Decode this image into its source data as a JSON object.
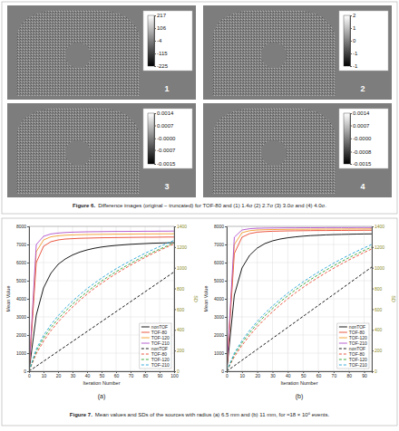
{
  "figure6": {
    "caption_label": "Figure 6.",
    "caption": "Difference images (original − truncated) for TOF-80 and (1) 1.4σ (2) 2.7σ (3) 3.0σ and (4) 4.0σ.",
    "panels": [
      {
        "label": "1",
        "colorbar": {
          "range": [
            -225,
            217
          ],
          "ticks": [
            217,
            106,
            -4,
            -115,
            -225
          ]
        }
      },
      {
        "label": "2",
        "colorbar": {
          "range": [
            -1.45,
            2.15
          ],
          "ticks": [
            {
              "value": 2.15,
              "label": "2"
            },
            {
              "value": 1.25,
              "label": "1"
            },
            {
              "value": 0.35,
              "label": "0"
            },
            {
              "value": -0.55,
              "label": "-1"
            },
            {
              "value": -1.45,
              "label": "-1"
            }
          ]
        }
      },
      {
        "label": "3",
        "colorbar": {
          "range": [
            -0.0015,
            0.0014
          ],
          "ticks": [
            0.0014,
            0.0007,
            {
              "value": -4e-05,
              "label": "-0.0000"
            },
            -0.0007,
            -0.0015
          ]
        }
      },
      {
        "label": "4",
        "colorbar": {
          "range": [
            -0.0015,
            0.0014
          ],
          "ticks": [
            0.0014,
            0.0007,
            {
              "value": -4e-05,
              "label": "-0.0000"
            },
            -0.0008,
            -0.0015
          ]
        }
      }
    ]
  },
  "figure7": {
    "caption_label": "Figure 7.",
    "caption": "Mean values and SDs of the sources with radius (a) 6.5 mm and (b) 11 mm, for ≈18 × 10⁶ events."
  },
  "chart_data": [
    {
      "type": "line",
      "title": "(a)",
      "x_label": "Iteration Number",
      "y_label": "Mean Value",
      "y2_label": "SD",
      "x": [
        0,
        5,
        10,
        15,
        20,
        25,
        30,
        35,
        40,
        45,
        50,
        55,
        60,
        65,
        70,
        75,
        80,
        85,
        90,
        95,
        100
      ],
      "xlim": [
        0,
        100
      ],
      "xticks": [
        0,
        10,
        20,
        30,
        40,
        50,
        60,
        70,
        80,
        90,
        100
      ],
      "ylim": [
        0,
        8000
      ],
      "yticks": [
        0,
        1000,
        2000,
        3000,
        4000,
        5000,
        6000,
        7000,
        8000
      ],
      "y2lim": [
        0,
        1400
      ],
      "y2ticks": [
        0,
        200,
        400,
        600,
        800,
        1000,
        1200,
        1400
      ],
      "grid": true,
      "legend": "lower right",
      "series": [
        {
          "name": "nonTOF",
          "color": "#000000",
          "line_style": "solid",
          "values": [
            0,
            3100,
            4600,
            5400,
            5900,
            6200,
            6420,
            6580,
            6700,
            6790,
            6860,
            6910,
            6950,
            6980,
            7010,
            7030,
            7050,
            7070,
            7080,
            7090,
            7100
          ]
        },
        {
          "name": "TOF-80",
          "color": "#e8452c",
          "line_style": "solid",
          "values": [
            0,
            6000,
            6900,
            7150,
            7250,
            7300,
            7320,
            7340,
            7350,
            7360,
            7370,
            7375,
            7380,
            7385,
            7390,
            7395,
            7400,
            7400,
            7405,
            7410,
            7410
          ]
        },
        {
          "name": "TOF-120",
          "color": "#f39c2b",
          "line_style": "solid",
          "values": [
            0,
            6600,
            7250,
            7420,
            7480,
            7510,
            7530,
            7540,
            7550,
            7555,
            7560,
            7565,
            7570,
            7570,
            7575,
            7580,
            7580,
            7585,
            7585,
            7590,
            7590
          ]
        },
        {
          "name": "TOF-210",
          "color": "#b04fc9",
          "line_style": "solid",
          "values": [
            0,
            7000,
            7450,
            7580,
            7630,
            7660,
            7680,
            7690,
            7700,
            7705,
            7710,
            7715,
            7720,
            7720,
            7725,
            7725,
            7730,
            7730,
            7735,
            7735,
            7740
          ]
        },
        {
          "name": "nonTOF",
          "color": "#000000",
          "line_style": "dashed",
          "axis": "y2",
          "values": [
            0,
            48,
            96,
            144,
            192,
            240,
            288,
            336,
            384,
            432,
            480,
            528,
            576,
            624,
            672,
            720,
            768,
            816,
            864,
            912,
            960
          ]
        },
        {
          "name": "TOF-80",
          "color": "#e8452c",
          "line_style": "dashed",
          "axis": "y2",
          "values": [
            0,
            170,
            290,
            390,
            475,
            550,
            620,
            685,
            745,
            800,
            850,
            898,
            943,
            985,
            1025,
            1063,
            1100,
            1135,
            1168,
            1200,
            1230
          ]
        },
        {
          "name": "TOF-120",
          "color": "#2ca02c",
          "line_style": "dashed",
          "axis": "y2",
          "values": [
            0,
            195,
            320,
            420,
            505,
            580,
            648,
            710,
            768,
            822,
            872,
            918,
            962,
            1003,
            1042,
            1080,
            1115,
            1148,
            1180,
            1210,
            1240
          ]
        },
        {
          "name": "TOF-210",
          "color": "#1fa3d6",
          "line_style": "dashed",
          "axis": "y2",
          "values": [
            0,
            215,
            345,
            448,
            535,
            610,
            678,
            740,
            798,
            850,
            900,
            946,
            990,
            1030,
            1068,
            1105,
            1140,
            1173,
            1205,
            1235,
            1265
          ]
        }
      ]
    },
    {
      "type": "line",
      "title": "(b)",
      "x_label": "Iteration Number",
      "y_label": "Mean Value",
      "y2_label": "SD",
      "x": [
        0,
        5,
        10,
        15,
        20,
        25,
        30,
        35,
        40,
        45,
        50,
        55,
        60,
        65,
        70,
        75,
        80,
        85,
        90,
        95
      ],
      "xlim": [
        0,
        95
      ],
      "xticks": [
        0,
        10,
        20,
        30,
        40,
        50,
        60,
        70,
        80,
        90
      ],
      "ylim": [
        0,
        8000
      ],
      "yticks": [
        0,
        1000,
        2000,
        3000,
        4000,
        5000,
        6000,
        7000,
        8000
      ],
      "y2lim": [
        0,
        1400
      ],
      "y2ticks": [
        0,
        200,
        400,
        600,
        800,
        1000,
        1200,
        1400
      ],
      "grid": true,
      "legend": "lower right",
      "series": [
        {
          "name": "nonTOF",
          "color": "#000000",
          "line_style": "solid",
          "values": [
            0,
            4200,
            5700,
            6400,
            6800,
            7050,
            7200,
            7300,
            7370,
            7420,
            7460,
            7490,
            7510,
            7530,
            7545,
            7555,
            7565,
            7575,
            7580,
            7585
          ]
        },
        {
          "name": "TOF-80",
          "color": "#e8452c",
          "line_style": "solid",
          "values": [
            0,
            6500,
            7400,
            7600,
            7680,
            7710,
            7730,
            7740,
            7750,
            7755,
            7760,
            7765,
            7770,
            7770,
            7775,
            7775,
            7780,
            7780,
            7785,
            7785
          ]
        },
        {
          "name": "TOF-120",
          "color": "#f39c2b",
          "line_style": "solid",
          "values": [
            0,
            7000,
            7650,
            7760,
            7800,
            7815,
            7825,
            7830,
            7835,
            7840,
            7840,
            7845,
            7845,
            7850,
            7850,
            7850,
            7855,
            7855,
            7855,
            7860
          ]
        },
        {
          "name": "TOF-210",
          "color": "#b04fc9",
          "line_style": "solid",
          "values": [
            0,
            7400,
            7800,
            7870,
            7895,
            7905,
            7910,
            7915,
            7920,
            7920,
            7925,
            7925,
            7925,
            7930,
            7930,
            7930,
            7930,
            7935,
            7935,
            7935
          ]
        },
        {
          "name": "nonTOF",
          "color": "#000000",
          "line_style": "dashed",
          "axis": "y2",
          "values": [
            0,
            53,
            106,
            159,
            212,
            265,
            318,
            371,
            424,
            477,
            530,
            583,
            636,
            689,
            742,
            795,
            848,
            901,
            954,
            1007
          ]
        },
        {
          "name": "TOF-80",
          "color": "#e8452c",
          "line_style": "dashed",
          "axis": "y2",
          "values": [
            0,
            140,
            250,
            345,
            430,
            505,
            575,
            640,
            700,
            757,
            810,
            860,
            907,
            952,
            995,
            1036,
            1075,
            1112,
            1148,
            1182
          ]
        },
        {
          "name": "TOF-120",
          "color": "#2ca02c",
          "line_style": "dashed",
          "axis": "y2",
          "values": [
            0,
            160,
            275,
            372,
            458,
            535,
            605,
            670,
            730,
            786,
            838,
            887,
            933,
            977,
            1019,
            1059,
            1097,
            1133,
            1168,
            1200
          ]
        },
        {
          "name": "TOF-210",
          "color": "#1fa3d6",
          "line_style": "dashed",
          "axis": "y2",
          "values": [
            0,
            175,
            295,
            395,
            482,
            560,
            630,
            695,
            755,
            811,
            863,
            912,
            958,
            1002,
            1044,
            1084,
            1122,
            1158,
            1192,
            1225
          ]
        }
      ]
    }
  ]
}
